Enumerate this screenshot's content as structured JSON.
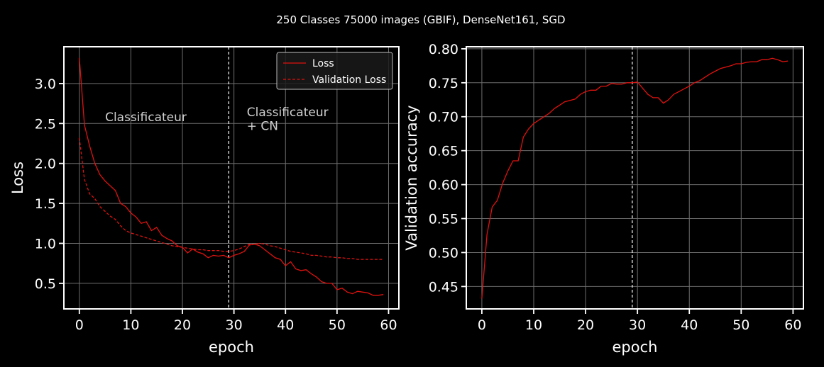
{
  "figure": {
    "title": "250 Classes 75000 images (GBIF), DenseNet161, SGD"
  },
  "colors": {
    "background": "#000000",
    "axes": "#ffffff",
    "grid": "#6e6e6e",
    "series": "#e0120f",
    "vline": "#ffffff",
    "annotation": "#d0d0d0"
  },
  "chart_data": [
    {
      "type": "line",
      "xlabel": "epoch",
      "ylabel": "Loss",
      "xlim": [
        -3,
        62
      ],
      "ylim": [
        0.18,
        3.46
      ],
      "xticks": [
        0,
        10,
        20,
        30,
        40,
        50,
        60
      ],
      "yticks": [
        0.5,
        1.0,
        1.5,
        2.0,
        2.5,
        3.0
      ],
      "xtick_labels": [
        "0",
        "10",
        "20",
        "30",
        "40",
        "50",
        "60"
      ],
      "ytick_labels": [
        "0.5",
        "1.0",
        "1.5",
        "2.0",
        "2.5",
        "3.0"
      ],
      "grid": true,
      "legend": "top-right",
      "vline_x": 29,
      "annotations": [
        {
          "text": "Classificateur",
          "x": 5,
          "y": 2.53
        },
        {
          "text": "Classificateur",
          "x": 32.5,
          "y": 2.59
        },
        {
          "text": "+ CN",
          "x": 32.5,
          "y": 2.42
        }
      ],
      "series": [
        {
          "name": "Loss",
          "style": "solid",
          "x": [
            0,
            1,
            2,
            3,
            4,
            5,
            6,
            7,
            8,
            9,
            10,
            11,
            12,
            13,
            14,
            15,
            16,
            17,
            18,
            19,
            20,
            21,
            22,
            23,
            24,
            25,
            26,
            27,
            28,
            29,
            30,
            31,
            32,
            33,
            34,
            35,
            36,
            37,
            38,
            39,
            40,
            41,
            42,
            43,
            44,
            45,
            46,
            47,
            48,
            49,
            50,
            51,
            52,
            53,
            54,
            55,
            56,
            57,
            58,
            59
          ],
          "values": [
            3.32,
            2.48,
            2.22,
            2.0,
            1.86,
            1.78,
            1.72,
            1.66,
            1.5,
            1.46,
            1.38,
            1.33,
            1.25,
            1.27,
            1.16,
            1.2,
            1.1,
            1.06,
            1.03,
            0.97,
            0.95,
            0.88,
            0.93,
            0.89,
            0.87,
            0.82,
            0.85,
            0.84,
            0.85,
            0.82,
            0.85,
            0.87,
            0.9,
            0.98,
            0.99,
            0.97,
            0.92,
            0.87,
            0.82,
            0.8,
            0.72,
            0.77,
            0.68,
            0.66,
            0.67,
            0.62,
            0.58,
            0.52,
            0.5,
            0.5,
            0.42,
            0.44,
            0.39,
            0.37,
            0.4,
            0.39,
            0.38,
            0.35,
            0.35,
            0.36
          ]
        },
        {
          "name": "Validation Loss",
          "style": "dashed",
          "x": [
            0,
            1,
            2,
            3,
            4,
            5,
            6,
            7,
            8,
            9,
            10,
            11,
            12,
            13,
            14,
            15,
            16,
            17,
            18,
            19,
            20,
            21,
            22,
            23,
            24,
            25,
            26,
            27,
            28,
            29,
            30,
            31,
            32,
            33,
            34,
            35,
            36,
            37,
            38,
            39,
            40,
            41,
            42,
            43,
            44,
            45,
            46,
            47,
            48,
            49,
            50,
            51,
            52,
            53,
            54,
            55,
            56,
            57,
            58,
            59
          ],
          "values": [
            2.32,
            1.8,
            1.62,
            1.56,
            1.46,
            1.4,
            1.34,
            1.3,
            1.22,
            1.16,
            1.13,
            1.11,
            1.09,
            1.07,
            1.05,
            1.03,
            1.01,
            0.99,
            0.97,
            0.96,
            0.95,
            0.94,
            0.93,
            0.92,
            0.92,
            0.91,
            0.91,
            0.91,
            0.9,
            0.9,
            0.91,
            0.93,
            0.96,
            0.99,
            0.99,
            1.0,
            0.99,
            0.97,
            0.96,
            0.94,
            0.92,
            0.9,
            0.89,
            0.88,
            0.87,
            0.85,
            0.85,
            0.84,
            0.83,
            0.83,
            0.82,
            0.82,
            0.81,
            0.81,
            0.8,
            0.8,
            0.8,
            0.8,
            0.8,
            0.8
          ]
        }
      ]
    },
    {
      "type": "line",
      "xlabel": "epoch",
      "ylabel": "Validation accuracy",
      "xlim": [
        -3,
        62
      ],
      "ylim": [
        0.417,
        0.803
      ],
      "xticks": [
        0,
        10,
        20,
        30,
        40,
        50,
        60
      ],
      "yticks": [
        0.45,
        0.5,
        0.55,
        0.6,
        0.65,
        0.7,
        0.75,
        0.8
      ],
      "xtick_labels": [
        "0",
        "10",
        "20",
        "30",
        "40",
        "50",
        "60"
      ],
      "ytick_labels": [
        "0.45",
        "0.50",
        "0.55",
        "0.60",
        "0.65",
        "0.70",
        "0.75",
        "0.80"
      ],
      "grid": true,
      "vline_x": 29,
      "series": [
        {
          "style": "solid",
          "x": [
            0,
            1,
            2,
            3,
            4,
            5,
            6,
            7,
            8,
            9,
            10,
            11,
            12,
            13,
            14,
            15,
            16,
            17,
            18,
            19,
            20,
            21,
            22,
            23,
            24,
            25,
            26,
            27,
            28,
            29,
            30,
            31,
            32,
            33,
            34,
            35,
            36,
            37,
            38,
            39,
            40,
            41,
            42,
            43,
            44,
            45,
            46,
            47,
            48,
            49,
            50,
            51,
            52,
            53,
            54,
            55,
            56,
            57,
            58,
            59
          ],
          "values": [
            0.432,
            0.527,
            0.567,
            0.577,
            0.602,
            0.62,
            0.635,
            0.635,
            0.67,
            0.682,
            0.69,
            0.695,
            0.7,
            0.705,
            0.712,
            0.717,
            0.722,
            0.724,
            0.726,
            0.733,
            0.737,
            0.739,
            0.739,
            0.745,
            0.745,
            0.749,
            0.748,
            0.748,
            0.75,
            0.75,
            0.751,
            0.742,
            0.733,
            0.728,
            0.728,
            0.72,
            0.725,
            0.733,
            0.737,
            0.741,
            0.745,
            0.75,
            0.753,
            0.758,
            0.763,
            0.767,
            0.771,
            0.773,
            0.775,
            0.778,
            0.778,
            0.78,
            0.781,
            0.781,
            0.784,
            0.784,
            0.786,
            0.784,
            0.781,
            0.782
          ]
        }
      ]
    }
  ]
}
